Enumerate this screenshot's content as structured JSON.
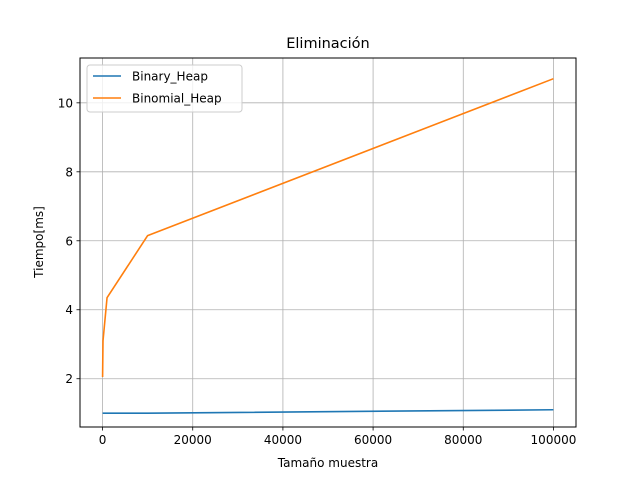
{
  "chart_data": {
    "type": "line",
    "title": "Eliminación",
    "xlabel": "Tamaño muestra",
    "ylabel": "Tiempo[ms]",
    "xlim": [
      -5000,
      105000
    ],
    "ylim": [
      0.6,
      11.3
    ],
    "xticks": [
      0,
      20000,
      40000,
      60000,
      80000,
      100000
    ],
    "yticks": [
      2,
      4,
      6,
      8,
      10
    ],
    "grid": true,
    "legend_position": "upper-left",
    "series": [
      {
        "name": "Binary_Heap",
        "color": "#1f77b4",
        "x": [
          10,
          100,
          1000,
          10000,
          100000
        ],
        "y": [
          1.0,
          1.0,
          1.0,
          1.0,
          1.1
        ]
      },
      {
        "name": "Binomial_Heap",
        "color": "#ff7f0e",
        "x": [
          10,
          100,
          1000,
          10000,
          100000
        ],
        "y": [
          2.05,
          3.1,
          4.35,
          6.15,
          10.7
        ]
      }
    ]
  }
}
